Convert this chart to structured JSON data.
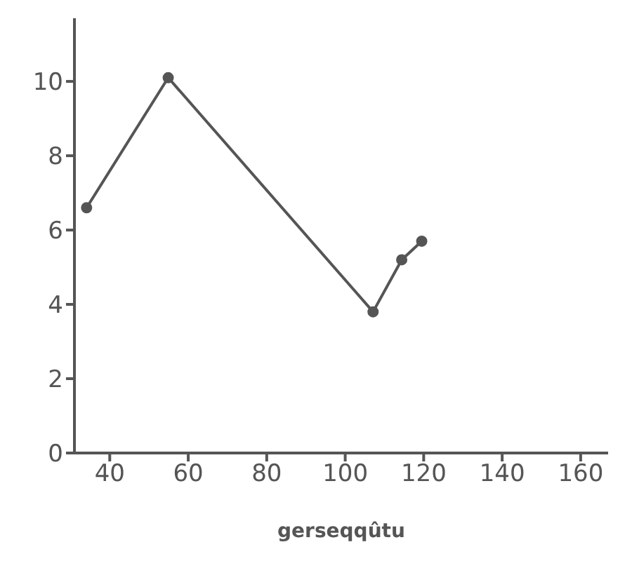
{
  "chart_data": {
    "type": "line",
    "xlabel": "gerseqqûtu",
    "x": [
      34.1,
      54.9,
      107.1,
      114.4,
      119.5
    ],
    "series": [
      {
        "color": "#555555",
        "values": [
          6.6,
          10.1,
          3.8,
          5.2,
          5.7
        ]
      }
    ],
    "xlim": [
      31,
      167
    ],
    "xticks": [
      40,
      60,
      80,
      100,
      120,
      140,
      160
    ],
    "ylim": [
      0,
      11.7
    ],
    "yticks": [
      0,
      2,
      4,
      6,
      8,
      10
    ],
    "grid": false,
    "legend": false,
    "marker": "circle",
    "line_style": "solid"
  }
}
